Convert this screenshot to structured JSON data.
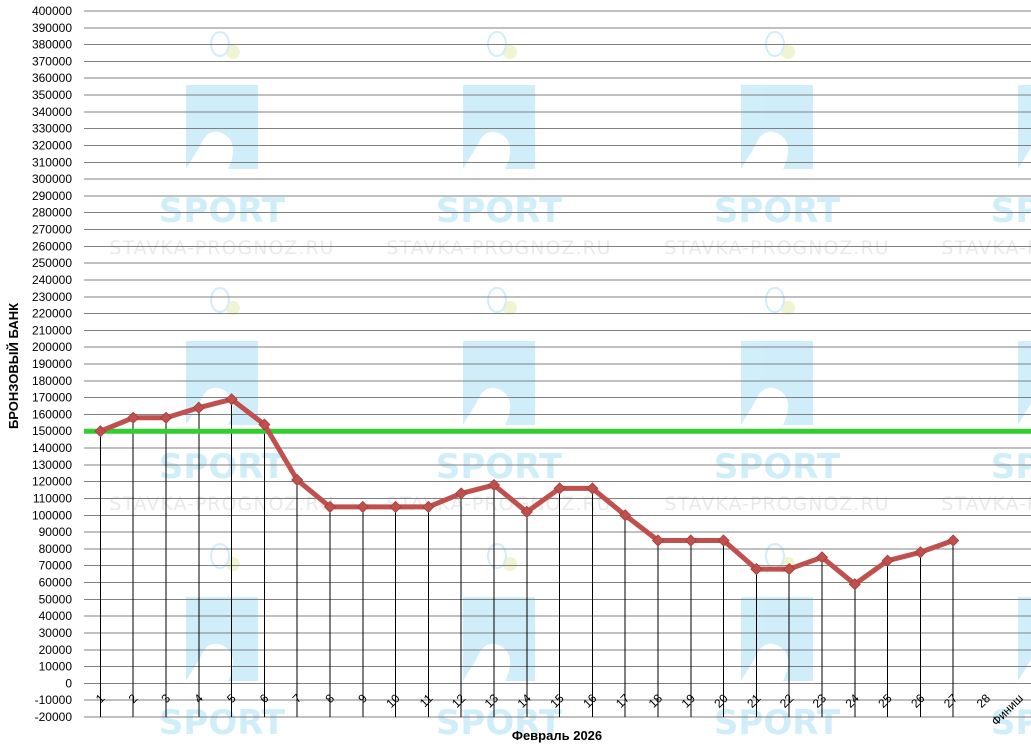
{
  "watermark": {
    "brand": "SPORT",
    "site": "STAVKA-PROGNOZ.RU"
  },
  "colors": {
    "line": "#c0504d",
    "marker": "#c0504d",
    "reference": "#33cc33",
    "grid": "#808080",
    "droplines": "#000000",
    "watermark_blue": "#c8ecfa"
  },
  "chart_data": {
    "type": "line",
    "xlabel": "Февраль 2026",
    "ylabel": "БРОНЗОВЫЙ БАНК",
    "categories": [
      "1",
      "2",
      "3",
      "4",
      "5",
      "6",
      "7",
      "8",
      "9",
      "10",
      "11",
      "12",
      "13",
      "14",
      "15",
      "16",
      "17",
      "18",
      "19",
      "20",
      "21",
      "22",
      "23",
      "24",
      "25",
      "26",
      "27",
      "28",
      "Финиш"
    ],
    "series": [
      {
        "values": [
          150000,
          158000,
          158000,
          164000,
          169000,
          154000,
          121000,
          105000,
          105000,
          105000,
          105000,
          113000,
          118000,
          102000,
          116000,
          116000,
          100000,
          85000,
          85000,
          85000,
          68000,
          68000,
          75000,
          59000,
          73000,
          78000,
          85000,
          null,
          null
        ]
      }
    ],
    "reference_line": 150000,
    "ylim": [
      -20000,
      400000
    ],
    "ytick_step": 10000,
    "grid": true
  }
}
